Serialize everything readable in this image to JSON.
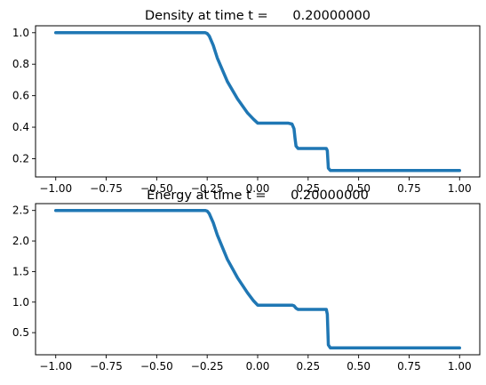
{
  "chart_data": [
    {
      "type": "line",
      "title": "Density at time t =      0.20000000",
      "xlabel": "",
      "ylabel": "",
      "xlim": [
        -1.1,
        1.1
      ],
      "ylim": [
        0.084,
        1.044
      ],
      "xticks": [
        -1.0,
        -0.75,
        -0.5,
        -0.25,
        0.0,
        0.25,
        0.5,
        0.75,
        1.0
      ],
      "xtick_labels": [
        "−1.00",
        "−0.75",
        "−0.50",
        "−0.25",
        "0.00",
        "0.25",
        "0.50",
        "0.75",
        "1.00"
      ],
      "yticks": [
        0.2,
        0.4,
        0.6,
        0.8,
        1.0
      ],
      "ytick_labels": [
        "0.2",
        "0.4",
        "0.6",
        "0.8",
        "1.0"
      ],
      "grid": false,
      "line_color": "#1f77b4",
      "series": [
        {
          "x": [
            -1.0,
            -0.26,
            -0.25,
            -0.24,
            -0.22,
            -0.2,
            -0.15,
            -0.1,
            -0.05,
            -0.02,
            0.0,
            0.05,
            0.1,
            0.15,
            0.17,
            0.18,
            0.185,
            0.19,
            0.2,
            0.25,
            0.3,
            0.34,
            0.345,
            0.35,
            0.36,
            0.4,
            0.5,
            0.6,
            0.7,
            0.8,
            0.9,
            1.0
          ],
          "y": [
            1.0,
            1.0,
            0.995,
            0.98,
            0.92,
            0.84,
            0.69,
            0.58,
            0.49,
            0.45,
            0.426,
            0.426,
            0.426,
            0.426,
            0.42,
            0.39,
            0.33,
            0.28,
            0.265,
            0.265,
            0.265,
            0.265,
            0.25,
            0.14,
            0.125,
            0.125,
            0.125,
            0.125,
            0.125,
            0.125,
            0.125,
            0.125
          ]
        }
      ]
    },
    {
      "type": "line",
      "title": "Energy at time t =      0.20000000",
      "xlabel": "",
      "ylabel": "",
      "xlim": [
        -1.1,
        1.1
      ],
      "ylim": [
        0.138,
        2.612
      ],
      "xticks": [
        -1.0,
        -0.75,
        -0.5,
        -0.25,
        0.0,
        0.25,
        0.5,
        0.75,
        1.0
      ],
      "xtick_labels": [
        "−1.00",
        "−0.75",
        "−0.50",
        "−0.25",
        "0.00",
        "0.25",
        "0.50",
        "0.75",
        "1.00"
      ],
      "yticks": [
        0.5,
        1.0,
        1.5,
        2.0,
        2.5
      ],
      "ytick_labels": [
        "0.5",
        "1.0",
        "1.5",
        "2.0",
        "2.5"
      ],
      "grid": false,
      "line_color": "#1f77b4",
      "series": [
        {
          "x": [
            -1.0,
            -0.26,
            -0.25,
            -0.24,
            -0.22,
            -0.2,
            -0.15,
            -0.1,
            -0.05,
            -0.02,
            0.0,
            0.05,
            0.1,
            0.15,
            0.17,
            0.18,
            0.19,
            0.2,
            0.25,
            0.3,
            0.34,
            0.345,
            0.35,
            0.36,
            0.4,
            0.5,
            0.6,
            0.7,
            0.8,
            0.9,
            1.0
          ],
          "y": [
            2.5,
            2.5,
            2.49,
            2.45,
            2.3,
            2.1,
            1.7,
            1.4,
            1.15,
            1.02,
            0.95,
            0.95,
            0.95,
            0.95,
            0.95,
            0.94,
            0.9,
            0.88,
            0.88,
            0.88,
            0.88,
            0.8,
            0.3,
            0.25,
            0.25,
            0.25,
            0.25,
            0.25,
            0.25,
            0.25,
            0.25
          ]
        }
      ]
    }
  ]
}
